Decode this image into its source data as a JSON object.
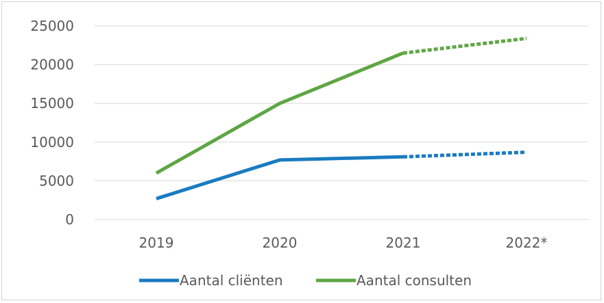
{
  "chart_data": {
    "type": "line",
    "categories": [
      "2019",
      "2020",
      "2021",
      "2022*"
    ],
    "series": [
      {
        "name": "Aantal cliënten",
        "color": "#1a7bc0",
        "values": [
          2700,
          7700,
          8100,
          8700
        ],
        "projected_from_index": 2
      },
      {
        "name": "Aantal consulten",
        "color": "#5fa644",
        "values": [
          6000,
          15000,
          21500,
          23400
        ],
        "projected_from_index": 2
      }
    ],
    "yticks": [
      "0",
      "5000",
      "10000",
      "15000",
      "20000",
      "25000"
    ],
    "ylim": [
      0,
      25000
    ],
    "grid": "horizontal",
    "legend_position": "bottom",
    "title": "",
    "xlabel": "",
    "ylabel": ""
  }
}
